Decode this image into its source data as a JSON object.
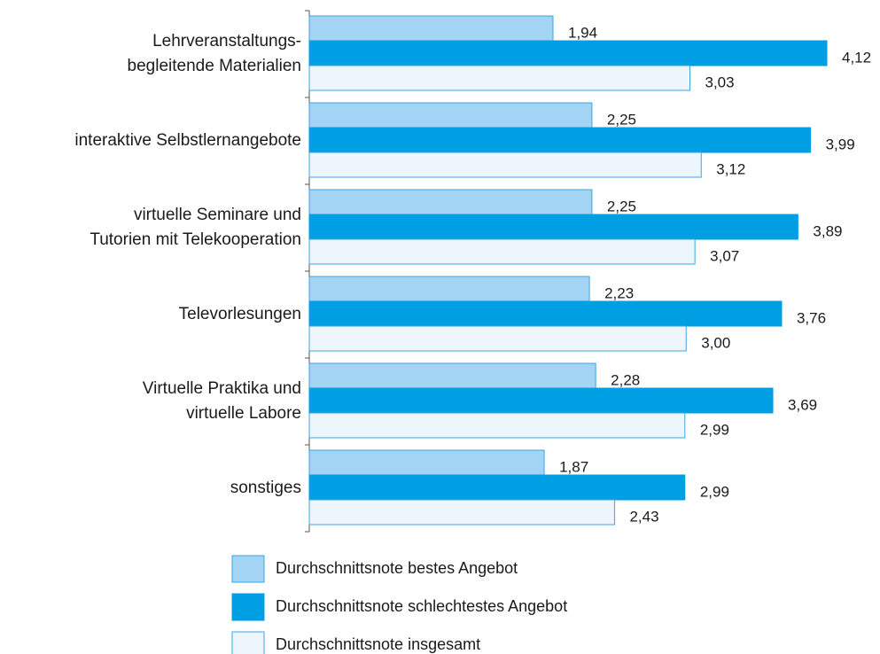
{
  "chart_data": {
    "type": "bar",
    "orientation": "horizontal",
    "categories": [
      [
        "Lehrveranstaltungs-",
        "begleitende Materialien"
      ],
      [
        "interaktive Selbstlernangebote"
      ],
      [
        "virtuelle Seminare und",
        "Tutorien mit Telekooperation"
      ],
      [
        "Televorlesungen"
      ],
      [
        "Virtuelle Praktika und",
        "virtuelle Labore"
      ],
      [
        "sonstiges"
      ]
    ],
    "series": [
      {
        "name": "Durchschnittsnote bestes Angebot",
        "color": "#a3d4f3",
        "stroke": "#3ba5e0",
        "values": [
          1.94,
          2.25,
          2.25,
          2.23,
          2.28,
          1.87
        ],
        "value_labels": [
          "1,94",
          "2,25",
          "2,25",
          "2,23",
          "2,28",
          "1,87"
        ]
      },
      {
        "name": "Durchschnittsnote schlechtestes Angebot",
        "color": "#009ee3",
        "stroke": "#009ee3",
        "values": [
          4.12,
          3.99,
          3.89,
          3.76,
          3.69,
          2.99
        ],
        "value_labels": [
          "4,12",
          "3,99",
          "3,89",
          "3,76",
          "3,69",
          "2,99"
        ]
      },
      {
        "name": "Durchschnittsnote insgesamt",
        "color": "#eef6fd",
        "stroke": "#3ba5e0",
        "values": [
          3.03,
          3.12,
          3.07,
          3.0,
          2.99,
          2.43
        ],
        "value_labels": [
          "3,03",
          "3,12",
          "3,07",
          "3,00",
          "2,99",
          "2,43"
        ]
      }
    ]
  }
}
